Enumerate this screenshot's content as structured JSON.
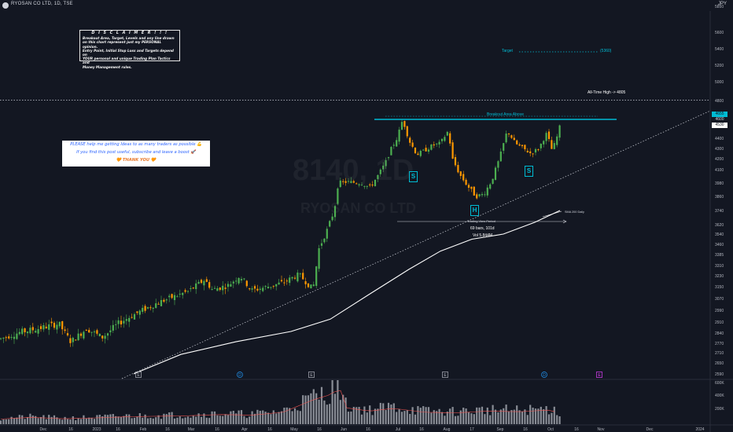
{
  "header": {
    "symbol": "RYOSAN CO LTD, 1D, TSE",
    "currency": "JPY"
  },
  "watermark": {
    "ticker": "8140, 1D",
    "name": "RYOSAN CO LTD"
  },
  "disclaimer": {
    "title": "D I S C L A I M E R  ! ! !",
    "lines": [
      "Breakout Area, Target, Levels and any line drawn",
      "on this chart represent just my PERSONAL opinion.",
      "Entry Point, Initial Stop Loss and Targets depend on",
      "YOUR personal and unique Trading Plan Tactics and",
      "Money Management rules."
    ]
  },
  "plea": {
    "line1": "PLEASE help me getting Ideas to as many traders as possible 💪",
    "line2": "If you find this post useful, subscribe and leave a boost 🚀",
    "line3": "🧡 THANK YOU 🧡"
  },
  "annotations": {
    "target_label": "Target",
    "target_value": "(5360)",
    "ath_label": "All-Time High -> 4805",
    "breakout_label": "Breakout Area Above",
    "pattern_s": "S",
    "pattern_h": "H",
    "period_label": "Trading View Period",
    "period_bars": "69 bars, 101d",
    "period_vol": "Vol 5.844M",
    "sma_label": "SMA 200 Daily"
  },
  "price_tags": {
    "breakout": "4655",
    "breakout_sub": "4600",
    "last": "4530"
  },
  "event_markers": [
    "E",
    "D",
    "E",
    "E",
    "D",
    "E"
  ],
  "volume_axis": [
    "600K",
    "400K",
    "200K"
  ],
  "colors": {
    "background": "#131722",
    "up": "#4caf50",
    "down": "#ff9800",
    "cyan": "#00bcd4",
    "sma": "#ffffff",
    "text": "#d1d4dc"
  },
  "chart_data": {
    "type": "candlestick",
    "title": "RYOSAN CO LTD, 1D, TSE",
    "ylabel": "JPY",
    "ylim": [
      2590,
      5950
    ],
    "y_ticks": [
      5850,
      5600,
      5400,
      5200,
      5000,
      4800,
      4655,
      4600,
      4530,
      4400,
      4300,
      4200,
      4100,
      3980,
      3860,
      3740,
      3620,
      3540,
      3460,
      3385,
      3310,
      3230,
      3150,
      3070,
      2990,
      2910,
      2840,
      2770,
      2710,
      2650,
      2590
    ],
    "x_ticks": [
      "Dec",
      "16",
      "2023",
      "16",
      "Feb",
      "16",
      "Mar",
      "16",
      "Apr",
      "16",
      "May",
      "16",
      "Jun",
      "16",
      "Jul",
      "16",
      "Aug",
      "17",
      "Sep",
      "16",
      "Oct",
      "16",
      "Nov",
      "Dec",
      "2024"
    ],
    "grid": false,
    "levels": {
      "target": 5360,
      "all_time_high": 4805,
      "breakout_area": 4655,
      "last_price": 4530
    },
    "price_path": [
      [
        0,
        2800
      ],
      [
        25,
        2845
      ],
      [
        50,
        2870
      ],
      [
        75,
        2900
      ],
      [
        90,
        2780
      ],
      [
        110,
        2870
      ],
      [
        130,
        2810
      ],
      [
        150,
        2900
      ],
      [
        170,
        2960
      ],
      [
        185,
        3000
      ],
      [
        200,
        3040
      ],
      [
        220,
        3080
      ],
      [
        240,
        3120
      ],
      [
        260,
        3200
      ],
      [
        270,
        3130
      ],
      [
        290,
        3160
      ],
      [
        305,
        3230
      ],
      [
        320,
        3125
      ],
      [
        340,
        3150
      ],
      [
        360,
        3180
      ],
      [
        380,
        3240
      ],
      [
        398,
        3130
      ],
      [
        405,
        3420
      ],
      [
        415,
        3560
      ],
      [
        425,
        3740
      ],
      [
        430,
        3980
      ],
      [
        440,
        3990
      ],
      [
        460,
        3980
      ],
      [
        470,
        3940
      ],
      [
        480,
        4040
      ],
      [
        490,
        4160
      ],
      [
        497,
        4290
      ],
      [
        505,
        4405
      ],
      [
        512,
        4600
      ],
      [
        520,
        4380
      ],
      [
        530,
        4240
      ],
      [
        540,
        4280
      ],
      [
        550,
        4330
      ],
      [
        560,
        4350
      ],
      [
        570,
        4480
      ],
      [
        575,
        4200
      ],
      [
        585,
        4050
      ],
      [
        595,
        3950
      ],
      [
        605,
        3860
      ],
      [
        615,
        3880
      ],
      [
        625,
        4000
      ],
      [
        635,
        4200
      ],
      [
        645,
        4480
      ],
      [
        655,
        4350
      ],
      [
        665,
        4300
      ],
      [
        675,
        4250
      ],
      [
        685,
        4300
      ],
      [
        695,
        4450
      ],
      [
        702,
        4280
      ],
      [
        707,
        4380
      ],
      [
        712,
        4530
      ]
    ],
    "sma200_path": [
      [
        170,
        2590
      ],
      [
        230,
        2700
      ],
      [
        300,
        2780
      ],
      [
        370,
        2850
      ],
      [
        420,
        2930
      ],
      [
        470,
        3100
      ],
      [
        520,
        3280
      ],
      [
        560,
        3410
      ],
      [
        600,
        3500
      ],
      [
        640,
        3540
      ],
      [
        680,
        3640
      ],
      [
        712,
        3740
      ]
    ],
    "volume_series": [
      [
        0,
        90
      ],
      [
        40,
        120
      ],
      [
        80,
        95
      ],
      [
        120,
        110
      ],
      [
        160,
        130
      ],
      [
        200,
        140
      ],
      [
        240,
        150
      ],
      [
        280,
        170
      ],
      [
        320,
        160
      ],
      [
        360,
        210
      ],
      [
        398,
        430
      ],
      [
        420,
        520
      ],
      [
        432,
        640
      ],
      [
        440,
        290
      ],
      [
        470,
        230
      ],
      [
        500,
        280
      ],
      [
        540,
        210
      ],
      [
        580,
        200
      ],
      [
        620,
        230
      ],
      [
        660,
        220
      ],
      [
        700,
        250
      ],
      [
        712,
        180
      ]
    ]
  }
}
